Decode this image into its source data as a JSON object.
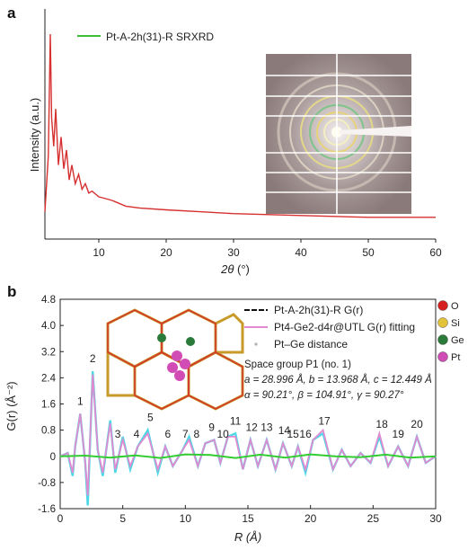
{
  "panel_a": {
    "label": "a",
    "legend": "Pt-A-2h(31)-R SRXRD",
    "ylabel": "Intensity (a.u.)",
    "xlabel_sym": "2θ",
    "xlabel_unit": "(°)",
    "xticks": [
      "10",
      "20",
      "30",
      "40",
      "50",
      "60"
    ]
  },
  "panel_b": {
    "label": "b",
    "ylabel": "G(r) (Å⁻²)",
    "xlabel": "R (Å)",
    "xticks": [
      "0",
      "5",
      "10",
      "15",
      "20",
      "25",
      "30"
    ],
    "yticks": [
      "-1.6",
      "-0.8",
      "0",
      "0.8",
      "1.6",
      "2.4",
      "3.2",
      "4.0",
      "4.8"
    ],
    "legend": [
      "Pt-A-2h(31)-R G(r)",
      "Pt4-Ge2-d4r@UTL G(r) fitting",
      "Pt–Ge distance"
    ],
    "space_group": "Space group P1 (no. 1)",
    "cell_abc": "a = 28.996 Å, b = 13.968 Å, c = 12.449 Å",
    "cell_angles": "α = 90.21°, β = 104.91°, γ = 90.27°",
    "atoms": [
      {
        "label": "O",
        "color": "#d62020"
      },
      {
        "label": "Si",
        "color": "#e2c23a"
      },
      {
        "label": "Ge",
        "color": "#2a7a3a"
      },
      {
        "label": "Pt",
        "color": "#d24cb5"
      }
    ]
  },
  "chart_data": [
    {
      "type": "line",
      "title": "",
      "xlabel": "2θ (°)",
      "ylabel": "Intensity (a.u.)",
      "xlim": [
        2,
        60
      ],
      "series": [
        {
          "name": "Pt-A-2h(31)-R SRXRD",
          "x": [
            2.0,
            2.5,
            2.8,
            3.0,
            3.3,
            3.6,
            4.0,
            4.4,
            4.8,
            5.2,
            5.6,
            6.0,
            6.5,
            7.0,
            7.5,
            8.0,
            8.5,
            9.0,
            10.0,
            11.0,
            12.0,
            14.0,
            16.0,
            20.0,
            25.0,
            30.0,
            40.0,
            50.0,
            60.0
          ],
          "y": [
            0.05,
            0.35,
            1.0,
            0.55,
            0.4,
            0.6,
            0.3,
            0.45,
            0.28,
            0.38,
            0.22,
            0.3,
            0.2,
            0.25,
            0.17,
            0.2,
            0.15,
            0.16,
            0.13,
            0.12,
            0.11,
            0.08,
            0.07,
            0.06,
            0.05,
            0.04,
            0.03,
            0.02,
            0.02
          ]
        }
      ]
    },
    {
      "type": "line",
      "title": "",
      "xlabel": "R (Å)",
      "ylabel": "G(r) (Å⁻²)",
      "xlim": [
        0,
        30
      ],
      "ylim": [
        -1.6,
        4.8
      ],
      "series": [
        {
          "name": "Pt-A-2h(31)-R G(r)",
          "x": [
            0.0,
            0.6,
            1.0,
            1.2,
            1.6,
            2.0,
            2.2,
            2.6,
            3.0,
            3.4,
            4.0,
            4.4,
            5.0,
            5.6,
            6.2,
            7.0,
            7.8,
            8.4,
            9.0,
            9.8,
            10.3,
            11.0,
            11.6,
            12.3,
            12.8,
            13.4,
            14.0,
            14.6,
            15.2,
            15.8,
            16.5,
            17.2,
            17.8,
            18.5,
            19.0,
            19.6,
            20.2,
            21.0,
            21.8,
            22.5,
            23.2,
            24.0,
            24.8,
            25.5,
            26.2,
            27.0,
            27.8,
            28.5,
            29.2,
            30.0
          ],
          "y": [
            0.0,
            0.1,
            -0.6,
            0.3,
            1.3,
            -0.2,
            -1.5,
            2.6,
            0.2,
            -0.6,
            1.1,
            -0.5,
            0.6,
            -0.4,
            0.3,
            0.8,
            -0.5,
            0.3,
            -0.3,
            0.2,
            0.6,
            -0.3,
            0.4,
            0.5,
            -0.2,
            0.6,
            0.7,
            -0.4,
            0.5,
            -0.3,
            0.5,
            -0.4,
            0.4,
            -0.3,
            0.3,
            -0.5,
            0.5,
            0.7,
            -0.4,
            0.2,
            -0.3,
            0.1,
            -0.2,
            0.6,
            -0.3,
            0.3,
            -0.3,
            0.6,
            -0.2,
            0.0
          ]
        },
        {
          "name": "Pt4-Ge2-d4r@UTL G(r) fitting",
          "x": [
            0.0,
            0.6,
            1.0,
            1.2,
            1.6,
            2.0,
            2.2,
            2.6,
            3.0,
            3.4,
            4.0,
            4.4,
            5.0,
            5.6,
            6.2,
            7.0,
            7.8,
            8.4,
            9.0,
            9.8,
            10.3,
            11.0,
            11.6,
            12.3,
            12.8,
            13.4,
            14.0,
            14.6,
            15.2,
            15.8,
            16.5,
            17.2,
            17.8,
            18.5,
            19.0,
            19.6,
            20.2,
            21.0,
            21.8,
            22.5,
            23.2,
            24.0,
            24.8,
            25.5,
            26.2,
            27.0,
            27.8,
            28.5,
            29.2,
            30.0
          ],
          "y": [
            0.0,
            0.1,
            -0.5,
            0.3,
            1.3,
            -0.2,
            -1.2,
            2.5,
            0.2,
            -0.5,
            1.0,
            -0.4,
            0.5,
            -0.3,
            0.3,
            0.7,
            -0.4,
            0.3,
            -0.3,
            0.2,
            0.5,
            -0.3,
            0.4,
            0.5,
            -0.2,
            0.6,
            0.6,
            -0.4,
            0.5,
            -0.3,
            0.5,
            -0.4,
            0.4,
            -0.3,
            0.3,
            -0.4,
            0.5,
            0.8,
            -0.4,
            0.2,
            -0.3,
            0.1,
            -0.2,
            0.7,
            -0.3,
            0.3,
            -0.3,
            0.6,
            -0.2,
            0.0
          ]
        },
        {
          "name": "Pt–Ge distance",
          "x": [
            0.0,
            2.0,
            4.0,
            6.0,
            8.0,
            10.0,
            12.0,
            14.0,
            16.0,
            18.0,
            20.0,
            22.0,
            24.0,
            26.0,
            28.0,
            30.0
          ],
          "y": [
            0.0,
            0.02,
            -0.04,
            0.03,
            -0.05,
            0.06,
            0.04,
            -0.05,
            0.05,
            -0.04,
            0.06,
            0.0,
            -0.03,
            0.05,
            -0.04,
            0.0
          ]
        }
      ],
      "peak_labels": [
        {
          "label": "1",
          "x": 1.6
        },
        {
          "label": "2",
          "x": 2.6
        },
        {
          "label": "3",
          "x": 4.6
        },
        {
          "label": "4",
          "x": 6.1
        },
        {
          "label": "5",
          "x": 7.2
        },
        {
          "label": "6",
          "x": 8.6
        },
        {
          "label": "7",
          "x": 10.0
        },
        {
          "label": "8",
          "x": 10.9
        },
        {
          "label": "9",
          "x": 12.1
        },
        {
          "label": "10",
          "x": 13.0
        },
        {
          "label": "11",
          "x": 14.0
        },
        {
          "label": "12",
          "x": 15.3
        },
        {
          "label": "13",
          "x": 16.5
        },
        {
          "label": "14",
          "x": 17.9
        },
        {
          "label": "15",
          "x": 18.6
        },
        {
          "label": "16",
          "x": 19.6
        },
        {
          "label": "17",
          "x": 21.1
        },
        {
          "label": "18",
          "x": 25.7
        },
        {
          "label": "19",
          "x": 27.0
        },
        {
          "label": "20",
          "x": 28.5
        }
      ]
    }
  ]
}
